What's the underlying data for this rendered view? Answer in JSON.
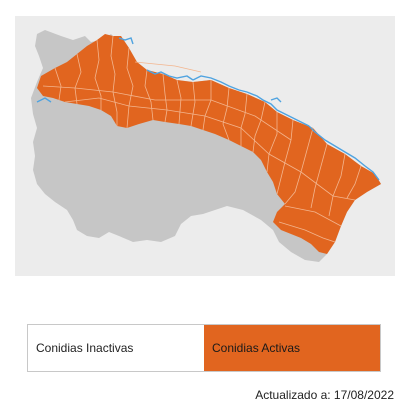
{
  "colors": {
    "active": "#e1651f",
    "inactive": "#c6c6c6",
    "background": "#ececec",
    "river": "#4fa3e0",
    "border_line": "#f3b58e"
  },
  "legend": {
    "inactive_label": "Conidias Inactivas",
    "active_label": "Conidias Activas"
  },
  "updated": {
    "text": "Actualizado a: 17/08/2022"
  }
}
